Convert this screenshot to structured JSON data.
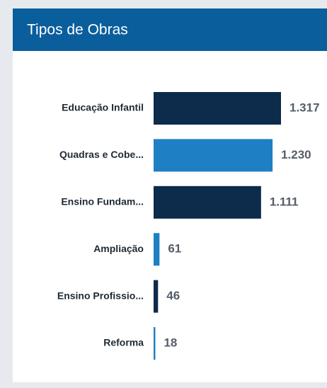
{
  "chart_data": {
    "type": "hbar",
    "title": "Tipos de Obras",
    "categories": [
      "Educação Infantil",
      "Quadras e Cobe...",
      "Ensino Fundam...",
      "Ampliação",
      "Ensino Profissio...",
      "Reforma"
    ],
    "values": [
      1317,
      1230,
      1111,
      61,
      46,
      18
    ],
    "value_labels": [
      "1.317",
      "1.230",
      "1.111",
      "61",
      "46",
      "18"
    ],
    "colors": [
      "#0d2b4a",
      "#1f7fc4",
      "#0d2b4a",
      "#1f7fc4",
      "#0d2b4a",
      "#1f7fc4"
    ]
  }
}
